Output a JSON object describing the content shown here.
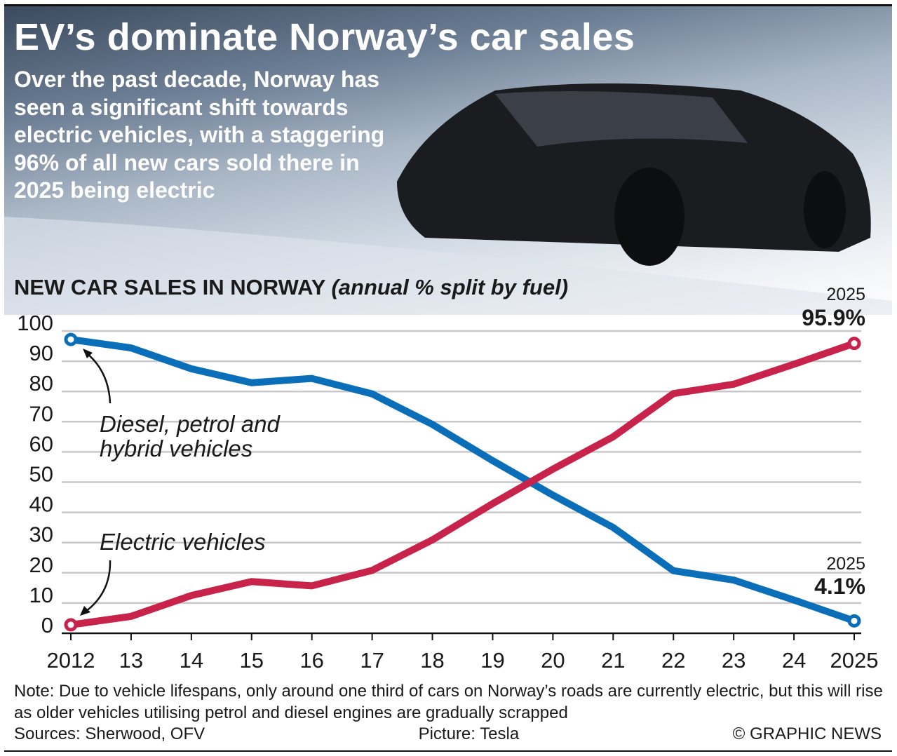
{
  "title": "EV’s dominate Norway’s car sales",
  "intro": "Over the past decade, Norway has seen a significant shift towards electric vehicles, with a staggering 96% of all new cars sold there in 2025 being electric",
  "picture_credit": "Picture: Tesla",
  "sources": "Sources: Sherwood, OFV",
  "copyright": "© GRAPHIC NEWS",
  "note": "Note: Due to vehicle lifespans, only around one third of cars on Norway’s roads are currently electric, but this will rise as older vehicles utilising petrol and diesel engines are gradually scrapped",
  "chart_data": {
    "type": "line",
    "title": "NEW CAR SALES IN NORWAY",
    "subtitle": "(annual % split by fuel)",
    "x": [
      2012,
      2013,
      2014,
      2015,
      2016,
      2017,
      2018,
      2019,
      2020,
      2021,
      2022,
      2023,
      2024,
      2025
    ],
    "xtick_labels": [
      "2012",
      "13",
      "14",
      "15",
      "16",
      "17",
      "18",
      "19",
      "20",
      "21",
      "22",
      "23",
      "24",
      "2025"
    ],
    "ylim": [
      0,
      100
    ],
    "yticks": [
      0,
      10,
      20,
      30,
      40,
      50,
      60,
      70,
      80,
      90,
      100
    ],
    "grid": true,
    "series": [
      {
        "name": "Diesel, petrol and hybrid vehicles",
        "color": "#0a6fb8",
        "values": [
          97.2,
          94.4,
          87.5,
          82.9,
          84.3,
          79.2,
          69.1,
          57.1,
          45.7,
          35.0,
          20.7,
          17.6,
          11.0,
          4.1
        ]
      },
      {
        "name": "Electric vehicles",
        "color": "#c8234b",
        "values": [
          2.8,
          5.6,
          12.5,
          17.1,
          15.7,
          20.8,
          30.9,
          42.9,
          54.3,
          65.0,
          79.3,
          82.4,
          89.0,
          95.9
        ]
      }
    ],
    "annotations": [
      {
        "year_label": "2025",
        "value_label": "95.9%"
      },
      {
        "year_label": "2025",
        "value_label": "4.1%"
      }
    ]
  }
}
